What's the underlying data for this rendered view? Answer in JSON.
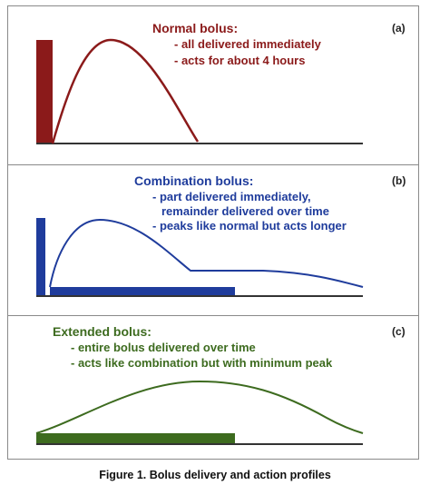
{
  "figure": {
    "caption": "Figure 1.  Bolus delivery and action profiles",
    "panels": [
      {
        "tag": "(a)",
        "title": "Normal bolus:",
        "lines": [
          "- all delivered immediately",
          "- acts for about 4 hours"
        ],
        "color": "#8b1a1a"
      },
      {
        "tag": "(b)",
        "title": "Combination bolus:",
        "lines": [
          "- part delivered immediately,",
          "remainder delivered over time",
          "- peaks like normal but acts longer"
        ],
        "color": "#1f3c9c"
      },
      {
        "tag": "(c)",
        "title": "Extended bolus:",
        "lines": [
          "- entire bolus delivered over time",
          "- acts like combination but with minimum peak"
        ],
        "color": "#3d6b1f"
      }
    ]
  }
}
